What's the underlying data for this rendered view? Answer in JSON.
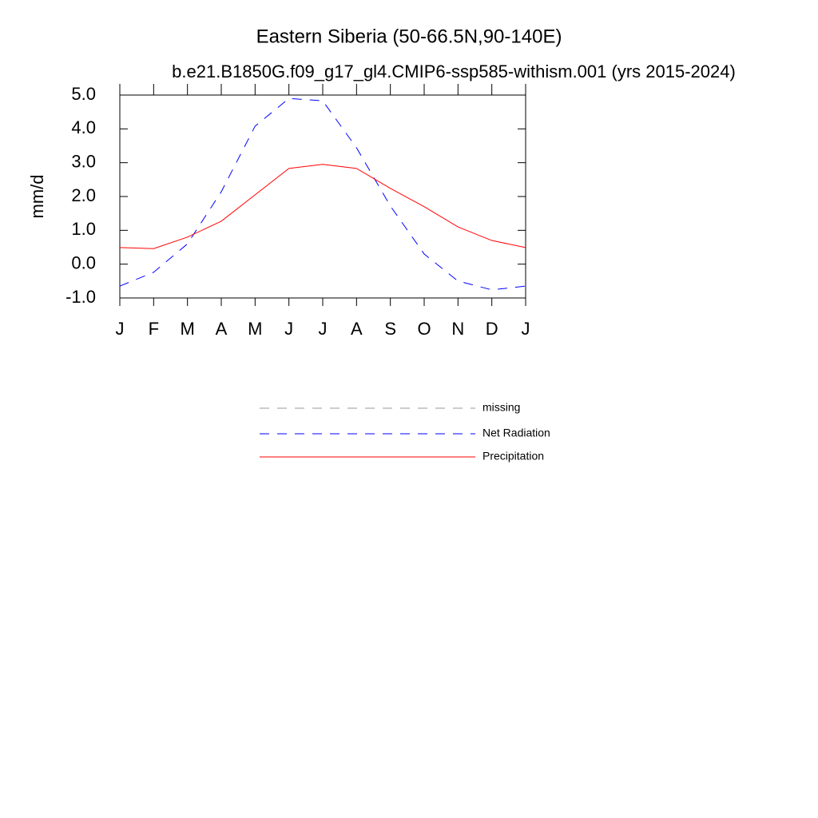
{
  "chart_data": {
    "type": "line",
    "title": "Eastern Siberia (50-66.5N,90-140E)",
    "subtitle": "b.e21.B1850G.f09_g17_gl4.CMIP6-ssp585-withism.001 (yrs 2015-2024)",
    "y_label": "mm/d",
    "categories": [
      "J",
      "F",
      "M",
      "A",
      "M",
      "J",
      "J",
      "A",
      "S",
      "O",
      "N",
      "D",
      "J"
    ],
    "ylim": [
      -1.0,
      5.0
    ],
    "yticks": [
      {
        "value": 5,
        "label": "5.0"
      },
      {
        "value": 4,
        "label": "4.0"
      },
      {
        "value": 3,
        "label": "3.0"
      },
      {
        "value": 2,
        "label": "2.0"
      },
      {
        "value": 1,
        "label": "1.0"
      },
      {
        "value": 0,
        "label": "0.0"
      },
      {
        "value": -1,
        "label": "-1.0"
      }
    ],
    "series": [
      {
        "name": "missing",
        "color": "#999999",
        "dashed": true,
        "values": [
          null,
          null,
          null,
          null,
          null,
          null,
          null,
          null,
          null,
          null,
          null,
          null,
          null
        ]
      },
      {
        "name": "Net Radiation",
        "color": "#0000ff",
        "dashed": true,
        "values": [
          -0.65,
          -0.24,
          0.6,
          2.14,
          4.08,
          4.9,
          4.83,
          3.44,
          1.72,
          0.3,
          -0.5,
          -0.76,
          -0.65
        ]
      },
      {
        "name": "Precipitation",
        "color": "#ff0000",
        "dashed": false,
        "values": [
          0.49,
          0.46,
          0.8,
          1.27,
          2.05,
          2.83,
          2.95,
          2.83,
          2.24,
          1.7,
          1.1,
          0.7,
          0.49
        ]
      }
    ]
  }
}
